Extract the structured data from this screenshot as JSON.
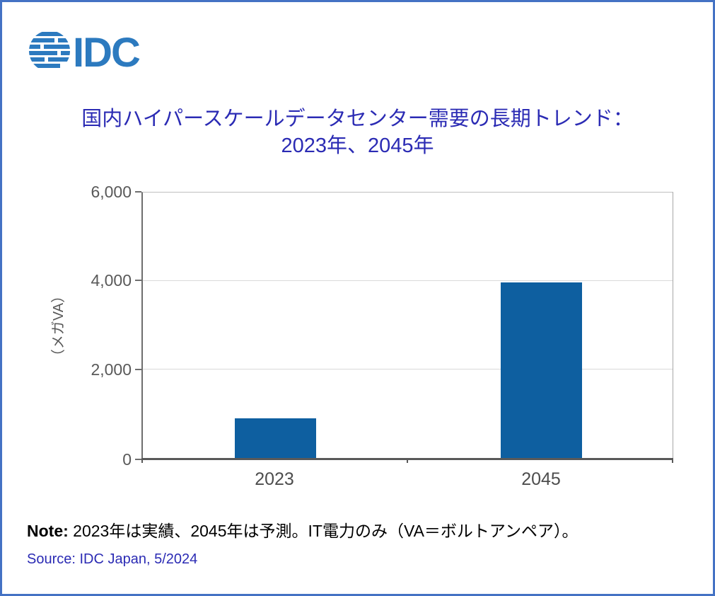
{
  "frame": {
    "border_color": "#4472C4",
    "background": "#FFFFFF"
  },
  "logo": {
    "text": "IDC",
    "color": "#2C7ABF"
  },
  "title": {
    "line1": "国内ハイパースケールデータセンター需要の長期トレンド：",
    "line2": "2023年、2045年",
    "color": "#2B2BB4"
  },
  "chart_data": {
    "type": "bar",
    "title": "国内ハイパースケールデータセンター需要の長期トレンド：2023年、2045年",
    "categories": [
      "2023",
      "2045"
    ],
    "values": [
      890,
      3960
    ],
    "xlabel": "",
    "ylabel": "（メガVA）",
    "ylim": [
      0,
      6000
    ],
    "ytick_interval": 2000,
    "ytick_labels": [
      "0",
      "2,000",
      "4,000",
      "6,000"
    ],
    "bar_color": "#0E5FA0",
    "grid": true,
    "legend": false
  },
  "note": {
    "label": "Note:",
    "text": " 2023年は実績、2045年は予測。IT電力のみ（VA＝ボルトアンペア）。"
  },
  "source": {
    "text": "Source: IDC Japan, 5/2024"
  }
}
